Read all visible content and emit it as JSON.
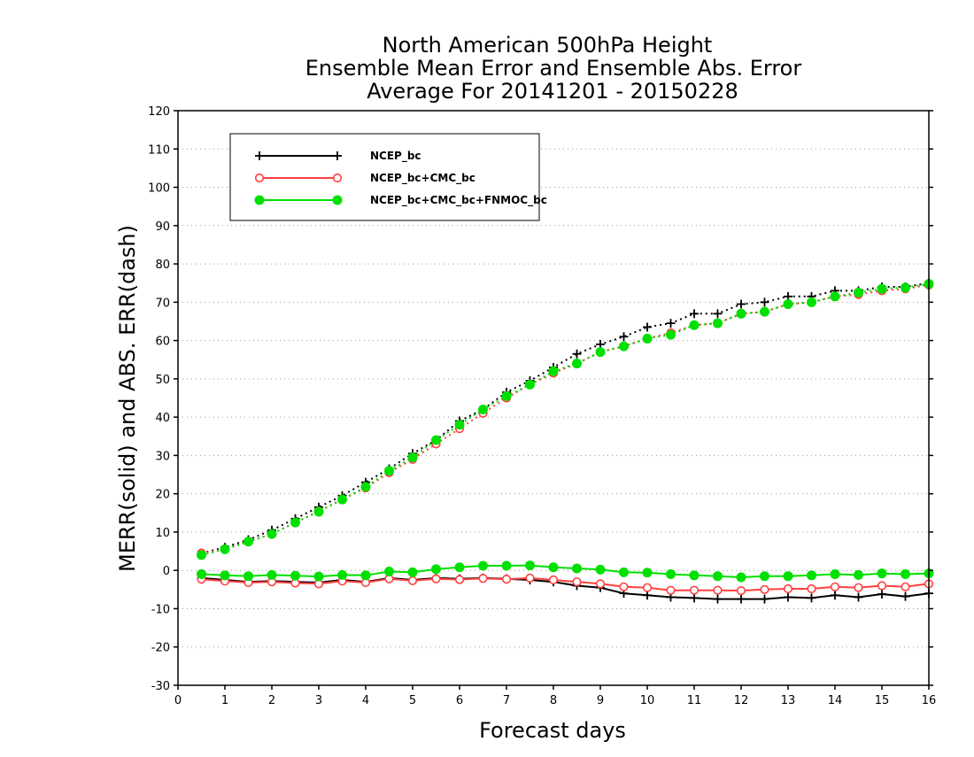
{
  "chart_data": {
    "type": "line",
    "title": [
      "North American 500hPa Height",
      "Ensemble Mean Error and Ensemble Abs. Error",
      "Average For 20141201 - 20150228"
    ],
    "xlabel": "Forecast days",
    "ylabel": "MERR(solid) and ABS. ERR(dash)",
    "xlim": [
      0,
      16
    ],
    "ylim": [
      -30,
      120
    ],
    "x_ticks": [
      0,
      1,
      2,
      3,
      4,
      5,
      6,
      7,
      8,
      9,
      10,
      11,
      12,
      13,
      14,
      15,
      16
    ],
    "y_ticks": [
      -30,
      -20,
      -10,
      0,
      10,
      20,
      30,
      40,
      50,
      60,
      70,
      80,
      90,
      100,
      110,
      120
    ],
    "grid": "horizontal dotted",
    "legend_position": "top-left",
    "x": [
      0.5,
      1.0,
      1.5,
      2.0,
      2.5,
      3.0,
      3.5,
      4.0,
      4.5,
      5.0,
      5.5,
      6.0,
      6.5,
      7.0,
      7.5,
      8.0,
      8.5,
      9.0,
      9.5,
      10.0,
      10.5,
      11.0,
      11.5,
      12.0,
      12.5,
      13.0,
      13.5,
      14.0,
      14.5,
      15.0,
      15.5,
      16.0
    ],
    "series": [
      {
        "name": "NCEP_bc",
        "color": "#000000",
        "marker": "plus",
        "merr": [
          -2.0,
          -2.5,
          -3.0,
          -2.8,
          -3.0,
          -3.2,
          -2.5,
          -3.0,
          -2.0,
          -2.5,
          -2.0,
          -2.2,
          -2.0,
          -2.2,
          -2.5,
          -3.0,
          -4.0,
          -4.5,
          -6.0,
          -6.5,
          -7.0,
          -7.2,
          -7.5,
          -7.5,
          -7.5,
          -7.0,
          -7.2,
          -6.5,
          -7.0,
          -6.2,
          -6.8,
          -6.0
        ],
        "abs_err": [
          4.5,
          6.0,
          8.0,
          10.5,
          13.5,
          16.5,
          19.5,
          23.0,
          26.5,
          30.5,
          34.0,
          39.0,
          42.0,
          46.5,
          49.5,
          53.0,
          56.5,
          59.0,
          61.0,
          63.5,
          64.5,
          67.0,
          67.0,
          69.5,
          70.0,
          71.5,
          71.5,
          73.0,
          73.0,
          74.0,
          74.0,
          75.0
        ]
      },
      {
        "name": "NCEP_bc+CMC_bc",
        "color": "#ff4040",
        "marker": "open-circle",
        "merr": [
          -2.3,
          -2.8,
          -3.2,
          -3.0,
          -3.3,
          -3.5,
          -2.8,
          -3.2,
          -2.2,
          -2.7,
          -2.2,
          -2.4,
          -2.1,
          -2.3,
          -2.0,
          -2.5,
          -3.0,
          -3.5,
          -4.3,
          -4.5,
          -5.2,
          -5.2,
          -5.2,
          -5.3,
          -5.0,
          -4.8,
          -4.8,
          -4.3,
          -4.5,
          -4.0,
          -4.3,
          -3.5
        ],
        "abs_err": [
          4.5,
          5.5,
          7.5,
          9.5,
          12.5,
          15.5,
          18.5,
          21.5,
          25.5,
          29.0,
          33.0,
          37.0,
          41.0,
          45.0,
          48.5,
          51.5,
          54.0,
          57.0,
          58.5,
          60.5,
          62.0,
          64.0,
          64.5,
          67.0,
          67.5,
          69.5,
          70.0,
          71.5,
          72.0,
          73.0,
          73.5,
          74.5
        ]
      },
      {
        "name": "NCEP_bc+CMC_bc+FNMOC_bc",
        "color": "#00e000",
        "marker": "filled-circle",
        "merr": [
          -1.0,
          -1.3,
          -1.5,
          -1.2,
          -1.4,
          -1.6,
          -1.2,
          -1.3,
          -0.3,
          -0.5,
          0.3,
          0.8,
          1.2,
          1.2,
          1.3,
          0.8,
          0.5,
          0.2,
          -0.5,
          -0.6,
          -1.0,
          -1.3,
          -1.5,
          -1.8,
          -1.5,
          -1.5,
          -1.3,
          -1.0,
          -1.2,
          -0.8,
          -1.0,
          -0.8
        ],
        "abs_err": [
          4.0,
          5.5,
          7.5,
          9.5,
          12.5,
          15.3,
          18.5,
          21.8,
          26.0,
          29.5,
          34.0,
          38.0,
          42.0,
          45.5,
          48.5,
          52.0,
          54.0,
          57.0,
          58.5,
          60.5,
          61.5,
          64.0,
          64.5,
          67.0,
          67.5,
          69.5,
          70.0,
          71.5,
          72.5,
          73.5,
          73.8,
          74.8
        ]
      }
    ]
  }
}
